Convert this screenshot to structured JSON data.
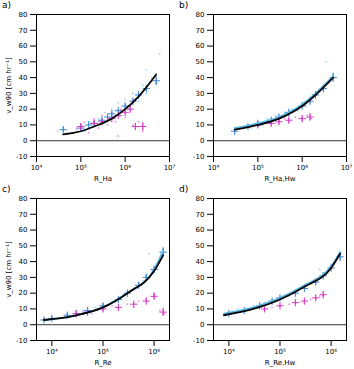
{
  "chart_data": [
    {
      "type": "scatter",
      "title": "a)",
      "x_label": "R_Ha",
      "y_label": "v_w90 [cm hr⁻¹]",
      "log": "x",
      "xlim": [
        10000,
        10000000
      ],
      "xticks": [
        {
          "value": 10000,
          "label": "10⁴"
        },
        {
          "value": 100000,
          "label": "10⁵"
        },
        {
          "value": 1000000,
          "label": "10⁶"
        },
        {
          "value": 10000000,
          "label": "10⁷"
        }
      ],
      "ylim": [
        -10,
        80
      ],
      "yticks": [
        -10,
        0,
        10,
        20,
        30,
        40,
        50,
        60,
        70,
        80
      ],
      "series": [
        {
          "type": "rule",
          "color": "#000000",
          "values": [
            0
          ]
        },
        {
          "type": "scatter",
          "marker": "dot",
          "color": "#6cc8ea",
          "x": [
            30000,
            50000,
            80000,
            100000,
            120000,
            150000,
            200000,
            250000,
            300000,
            350000,
            400000,
            500000,
            600000,
            700000,
            800000,
            1000000,
            1200000,
            1500000,
            2000000,
            2500000,
            3000000,
            4000000,
            5000000,
            6000000,
            3000000
          ],
          "values": [
            6,
            5,
            7,
            10,
            6,
            12,
            9,
            14,
            11,
            18,
            13,
            20,
            15,
            24,
            18,
            26,
            20,
            30,
            25,
            35,
            30,
            40,
            36,
            55,
            45
          ]
        },
        {
          "type": "scatter",
          "marker": "dot",
          "color": "#e85ad6",
          "x": [
            80000,
            120000,
            150000,
            200000,
            250000,
            300000,
            400000,
            500000,
            600000,
            800000,
            1000000,
            1200000,
            1500000,
            2000000,
            2500000,
            700000
          ],
          "values": [
            8,
            12,
            5,
            14,
            8,
            16,
            10,
            18,
            12,
            20,
            15,
            22,
            10,
            12,
            6,
            3
          ]
        },
        {
          "type": "scatter",
          "marker": "plus",
          "color": "#3b83d6",
          "x": [
            40000,
            100000,
            150000,
            200000,
            300000,
            400000,
            500000,
            700000,
            1000000,
            1500000,
            2000000,
            3000000,
            5000000
          ],
          "values": [
            7,
            8,
            10,
            11,
            13,
            15,
            17,
            19,
            22,
            25,
            29,
            33,
            38
          ],
          "error": [
            1.5,
            1,
            1,
            1,
            1,
            1,
            1,
            1,
            1.5,
            1.5,
            2,
            2,
            3
          ]
        },
        {
          "type": "scatter",
          "marker": "plus",
          "color": "#d43ac4",
          "x": [
            100000,
            200000,
            300000,
            500000,
            700000,
            1000000,
            1300000,
            1700000,
            2500000
          ],
          "values": [
            9,
            11,
            12,
            14,
            16,
            18,
            20,
            9,
            9
          ],
          "error": [
            1.5,
            1,
            1,
            1,
            1,
            1.5,
            2,
            2,
            2.5
          ]
        },
        {
          "type": "line",
          "color": "#000000",
          "x": [
            40000,
            100000,
            200000,
            500000,
            1000000,
            2000000,
            5000000
          ],
          "values": [
            4,
            6,
            9,
            14,
            20,
            28,
            42
          ]
        }
      ]
    },
    {
      "type": "scatter",
      "title": "b)",
      "x_label": "R_Ha,Hw",
      "log": "x",
      "xlim": [
        10000,
        10000000
      ],
      "xticks": [
        {
          "value": 10000,
          "label": "10⁴"
        },
        {
          "value": 100000,
          "label": "10⁵"
        },
        {
          "value": 1000000,
          "label": "10⁶"
        },
        {
          "value": 10000000,
          "label": "10⁷"
        }
      ],
      "ylim": [
        -10,
        80
      ],
      "yticks": [
        -10,
        0,
        10,
        20,
        30,
        40,
        50,
        60,
        70,
        80
      ],
      "series": [
        {
          "type": "rule",
          "color": "#000000",
          "values": [
            0
          ]
        },
        {
          "type": "scatter",
          "marker": "dot",
          "color": "#6cc8ea",
          "x": [
            30000,
            50000,
            70000,
            100000,
            130000,
            160000,
            200000,
            250000,
            300000,
            400000,
            500000,
            600000,
            800000,
            1000000,
            1200000,
            1500000,
            2000000,
            2500000,
            3000000,
            4000000,
            5000000,
            3500000
          ],
          "values": [
            7,
            9,
            8,
            12,
            10,
            14,
            12,
            16,
            14,
            18,
            16,
            20,
            19,
            24,
            22,
            27,
            30,
            32,
            35,
            38,
            42,
            50
          ]
        },
        {
          "type": "scatter",
          "marker": "dot",
          "color": "#e85ad6",
          "x": [
            100000,
            150000,
            200000,
            250000,
            300000,
            400000,
            500000,
            700000,
            1000000,
            1300000,
            1600000
          ],
          "values": [
            9,
            12,
            10,
            13,
            11,
            14,
            12,
            15,
            13,
            16,
            14
          ]
        },
        {
          "type": "scatter",
          "marker": "plus",
          "color": "#3b83d6",
          "x": [
            30000,
            60000,
            100000,
            200000,
            300000,
            500000,
            1000000,
            1500000,
            2000000,
            3000000,
            5000000
          ],
          "values": [
            6,
            9,
            11,
            13,
            15,
            18,
            22,
            25,
            29,
            33,
            40
          ],
          "error": [
            1.5,
            1,
            1,
            1,
            1,
            1,
            1,
            1.5,
            2,
            2,
            3
          ]
        },
        {
          "type": "scatter",
          "marker": "plus",
          "color": "#d43ac4",
          "x": [
            100000,
            200000,
            300000,
            500000,
            1000000,
            1500000
          ],
          "values": [
            10,
            11,
            12,
            13,
            14,
            15
          ],
          "error": [
            1,
            1,
            1,
            1,
            1.5,
            2
          ]
        },
        {
          "type": "line",
          "color": "#56b8e6",
          "x": [
            30000,
            100000,
            300000,
            1000000,
            2000000,
            5000000
          ],
          "values": [
            8,
            11,
            15,
            23,
            30,
            41
          ]
        },
        {
          "type": "line",
          "color": "#000000",
          "x": [
            30000,
            100000,
            300000,
            1000000,
            2000000,
            5000000
          ],
          "values": [
            7,
            10,
            14,
            22,
            29,
            40
          ]
        }
      ]
    },
    {
      "type": "scatter",
      "title": "c)",
      "x_label": "R_Re",
      "y_label": "v_w90 [cm hr⁻¹]",
      "log": "x",
      "xlim": [
        5000,
        2000000
      ],
      "xticks": [
        {
          "value": 10000,
          "label": "10⁴"
        },
        {
          "value": 100000,
          "label": "10⁵"
        },
        {
          "value": 1000000,
          "label": "10⁶"
        }
      ],
      "ylim": [
        -10,
        80
      ],
      "yticks": [
        -10,
        0,
        10,
        20,
        30,
        40,
        50,
        60,
        70,
        80
      ],
      "series": [
        {
          "type": "rule",
          "color": "#000000",
          "values": [
            0
          ]
        },
        {
          "type": "scatter",
          "marker": "dot",
          "color": "#6cc8ea",
          "x": [
            7000,
            10000,
            15000,
            20000,
            30000,
            40000,
            50000,
            70000,
            100000,
            150000,
            200000,
            250000,
            300000,
            400000,
            500000,
            600000,
            700000,
            900000,
            1000000,
            1200000,
            1500000,
            800000
          ],
          "values": [
            3,
            5,
            4,
            7,
            6,
            9,
            8,
            11,
            13,
            15,
            17,
            19,
            21,
            23,
            26,
            28,
            31,
            33,
            36,
            40,
            48,
            45
          ]
        },
        {
          "type": "scatter",
          "marker": "dot",
          "color": "#e85ad6",
          "x": [
            30000,
            40000,
            60000,
            80000,
            100000,
            150000,
            200000,
            300000,
            400000,
            500000,
            700000,
            1000000,
            1300000,
            1600000
          ],
          "values": [
            6,
            8,
            7,
            10,
            9,
            12,
            10,
            13,
            11,
            15,
            16,
            19,
            9,
            7
          ]
        },
        {
          "type": "scatter",
          "marker": "plus",
          "color": "#3b83d6",
          "x": [
            7000,
            10000,
            20000,
            30000,
            50000,
            100000,
            200000,
            300000,
            500000,
            700000,
            1000000,
            1500000
          ],
          "values": [
            3,
            4,
            6,
            7,
            9,
            12,
            16,
            20,
            25,
            30,
            35,
            46
          ],
          "error": [
            1,
            1,
            1,
            1,
            1,
            1,
            1,
            1.5,
            1.5,
            2,
            2,
            3
          ]
        },
        {
          "type": "scatter",
          "marker": "plus",
          "color": "#d43ac4",
          "x": [
            30000,
            50000,
            100000,
            200000,
            400000,
            700000,
            1000000,
            1500000
          ],
          "values": [
            7,
            8,
            10,
            11,
            13,
            15,
            18,
            8
          ],
          "error": [
            1,
            1,
            1,
            1,
            1,
            1.5,
            2,
            2.5
          ]
        },
        {
          "type": "line",
          "color": "#56b8e6",
          "x": [
            7000,
            30000,
            100000,
            300000,
            1000000,
            1500000
          ],
          "values": [
            3,
            6,
            11,
            20,
            35,
            47
          ]
        },
        {
          "type": "line",
          "color": "#000000",
          "x": [
            7000,
            30000,
            100000,
            300000,
            1000000,
            1500000
          ],
          "values": [
            3,
            6,
            11,
            20,
            34,
            44
          ]
        }
      ]
    },
    {
      "type": "scatter",
      "title": "d)",
      "x_label": "R_Re,Hw",
      "log": "x",
      "xlim": [
        5000,
        2000000
      ],
      "xticks": [
        {
          "value": 10000,
          "label": "10⁴"
        },
        {
          "value": 100000,
          "label": "10⁵"
        },
        {
          "value": 1000000,
          "label": "10⁶"
        }
      ],
      "ylim": [
        -10,
        80
      ],
      "yticks": [
        -10,
        0,
        10,
        20,
        30,
        40,
        50,
        60,
        70,
        80
      ],
      "series": [
        {
          "type": "rule",
          "color": "#000000",
          "values": [
            0
          ]
        },
        {
          "type": "scatter",
          "marker": "dot",
          "color": "#6cc8ea",
          "x": [
            9000,
            12000,
            15000,
            20000,
            30000,
            40000,
            50000,
            70000,
            100000,
            150000,
            200000,
            300000,
            400000,
            500000,
            700000,
            900000,
            1000000,
            1200000,
            1500000,
            600000
          ],
          "values": [
            7,
            8,
            10,
            9,
            12,
            11,
            14,
            15,
            17,
            18,
            21,
            23,
            26,
            27,
            31,
            34,
            37,
            40,
            46,
            35
          ]
        },
        {
          "type": "scatter",
          "marker": "dot",
          "color": "#e85ad6",
          "x": [
            50000,
            70000,
            100000,
            150000,
            200000,
            300000,
            400000,
            500000,
            600000,
            700000
          ],
          "values": [
            9,
            11,
            12,
            13,
            14,
            14,
            16,
            17,
            18,
            19
          ]
        },
        {
          "type": "scatter",
          "marker": "plus",
          "color": "#3b83d6",
          "x": [
            10000,
            20000,
            40000,
            70000,
            100000,
            200000,
            300000,
            500000,
            700000,
            1000000,
            1500000
          ],
          "values": [
            7,
            9,
            12,
            15,
            17,
            20,
            23,
            27,
            31,
            36,
            43
          ],
          "error": [
            1,
            1,
            1,
            1,
            1,
            1,
            1,
            1.5,
            1.5,
            2,
            3
          ]
        },
        {
          "type": "scatter",
          "marker": "plus",
          "color": "#d43ac4",
          "x": [
            50000,
            100000,
            200000,
            300000,
            500000,
            700000
          ],
          "values": [
            10,
            12,
            14,
            15,
            17,
            19
          ],
          "error": [
            1,
            1,
            1,
            1,
            1.5,
            2
          ]
        },
        {
          "type": "line",
          "color": "#56b8e6",
          "x": [
            8000,
            30000,
            100000,
            300000,
            1000000,
            1500000
          ],
          "values": [
            7,
            11,
            17,
            25,
            37,
            46
          ]
        },
        {
          "type": "line",
          "color": "#000000",
          "x": [
            8000,
            30000,
            100000,
            300000,
            1000000,
            1500000
          ],
          "values": [
            6,
            10,
            16,
            24,
            36,
            45
          ]
        }
      ]
    }
  ]
}
